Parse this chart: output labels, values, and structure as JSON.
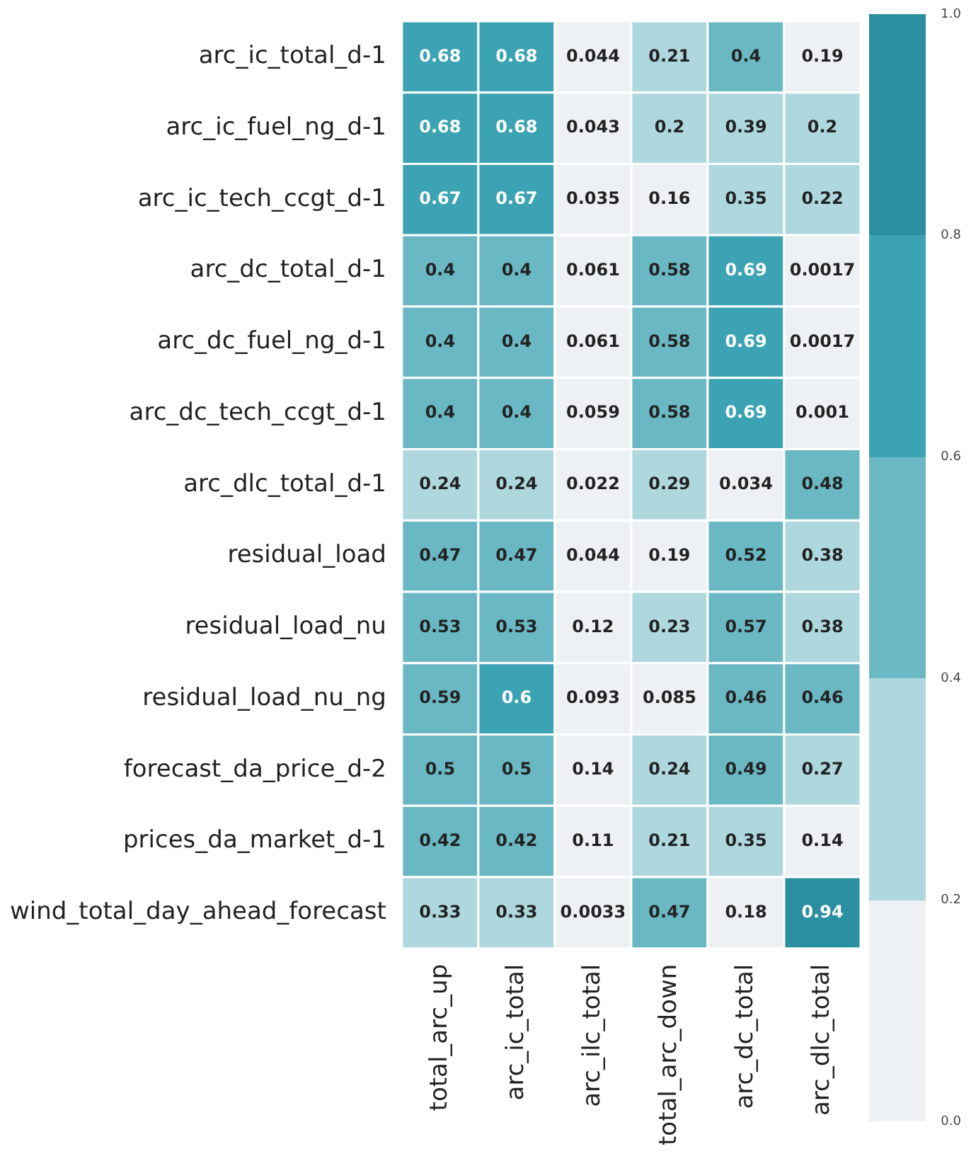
{
  "chart_data": {
    "type": "heatmap",
    "categories": [
      "total_arc_up",
      "arc_ic_total",
      "arc_ilc_total",
      "total_arc_down",
      "arc_dc_total",
      "arc_dlc_total"
    ],
    "y_categories": [
      "arc_ic_total_d-1",
      "arc_ic_fuel_ng_d-1",
      "arc_ic_tech_ccgt_d-1",
      "arc_dc_total_d-1",
      "arc_dc_fuel_ng_d-1",
      "arc_dc_tech_ccgt_d-1",
      "arc_dlc_total_d-1",
      "residual_load",
      "residual_load_nu",
      "residual_load_nu_ng",
      "forecast_da_price_d-2",
      "prices_da_market_d-1",
      "wind_total_day_ahead_forecast"
    ],
    "cells": [
      [
        0.68,
        0.68,
        0.044,
        0.21,
        0.4,
        0.19
      ],
      [
        0.68,
        0.68,
        0.043,
        0.2,
        0.39,
        0.2
      ],
      [
        0.67,
        0.67,
        0.035,
        0.16,
        0.35,
        0.22
      ],
      [
        0.4,
        0.4,
        0.061,
        0.58,
        0.69,
        0.0017
      ],
      [
        0.4,
        0.4,
        0.061,
        0.58,
        0.69,
        0.0017
      ],
      [
        0.4,
        0.4,
        0.059,
        0.58,
        0.69,
        0.001
      ],
      [
        0.24,
        0.24,
        0.022,
        0.29,
        0.034,
        0.48
      ],
      [
        0.47,
        0.47,
        0.044,
        0.19,
        0.52,
        0.38
      ],
      [
        0.53,
        0.53,
        0.12,
        0.23,
        0.57,
        0.38
      ],
      [
        0.59,
        0.6,
        0.093,
        0.085,
        0.46,
        0.46
      ],
      [
        0.5,
        0.5,
        0.14,
        0.24,
        0.49,
        0.27
      ],
      [
        0.42,
        0.42,
        0.11,
        0.21,
        0.35,
        0.14
      ],
      [
        0.33,
        0.33,
        0.0033,
        0.47,
        0.18,
        0.94
      ]
    ],
    "data_labels": true,
    "colors": [
      "#edf1f3",
      "#aed8de",
      "#6ab8c4",
      "#3ba3b3",
      "#2a8fa0"
    ],
    "clim": [
      0,
      1
    ],
    "cticks": [
      {
        "value": 0,
        "label": "0.0"
      },
      {
        "value": 0.2,
        "label": "0.2"
      },
      {
        "value": 0.4,
        "label": "0.4"
      },
      {
        "value": 0.6,
        "label": "0.6"
      },
      {
        "value": 0.8,
        "label": "0.8"
      },
      {
        "value": 1,
        "label": "1.0"
      }
    ]
  }
}
